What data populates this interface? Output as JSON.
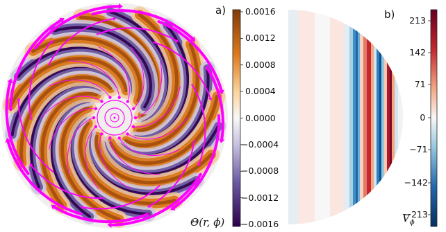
{
  "panel_a": {
    "label": "a)",
    "colorbar": {
      "label": "Θ(r, ϕ)",
      "ticks": [
        "0.0016",
        "0.0012",
        "0.0008",
        "0.0004",
        "0.0000",
        "−0.0004",
        "−0.0008",
        "−0.0012",
        "−0.0016"
      ],
      "range": [
        -0.0016,
        0.0016
      ],
      "colors": {
        "high": "#7f3b08",
        "mid_high": "#e08214",
        "zero": "#f7f7f7",
        "mid_low": "#8073ac",
        "low": "#2d004b"
      }
    },
    "field": {
      "spiral_arms": 11,
      "streamline_color": "#ff00ff"
    }
  },
  "panel_b": {
    "label": "b)",
    "colorbar": {
      "label": "Vϕ",
      "label_main": "V",
      "label_sub": "ϕ",
      "ticks": [
        "213",
        "142",
        "71",
        "0",
        "−71",
        "−142",
        "−213"
      ],
      "range": [
        -250,
        250
      ],
      "colors": {
        "high": "#67001f",
        "mid_high": "#f4a582",
        "zero": "#f7f7f7",
        "mid_low": "#92c5de",
        "low": "#053061"
      }
    }
  }
}
